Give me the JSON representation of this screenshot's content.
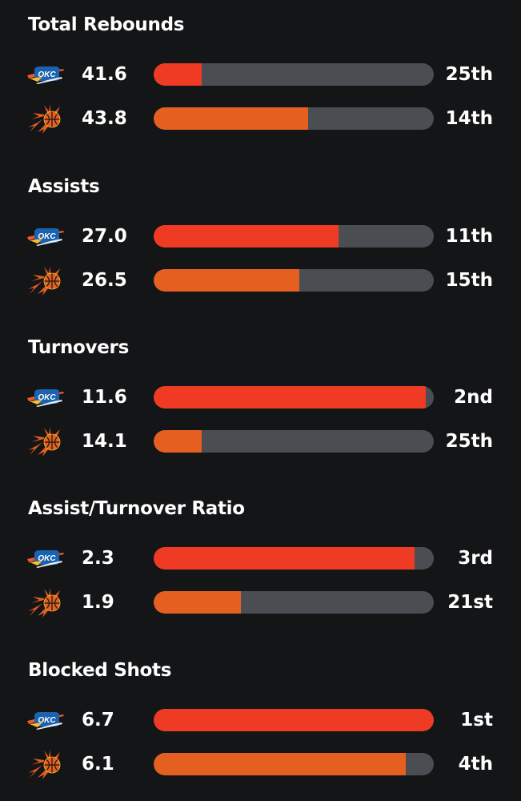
{
  "colors": {
    "background": "#141517",
    "track": "#4a4d52",
    "okc_bar": "#ef3b24",
    "phx_bar": "#e56020",
    "text": "#ffffff"
  },
  "teams": [
    {
      "key": "okc",
      "logo_icon": "okc-thunder-logo-icon"
    },
    {
      "key": "phx",
      "logo_icon": "phoenix-suns-logo-icon"
    }
  ],
  "sections": [
    {
      "title": "Total Rebounds",
      "rows": [
        {
          "team": "okc",
          "value": "41.6",
          "rank": "25th",
          "bar_fraction": 0.17
        },
        {
          "team": "phx",
          "value": "43.8",
          "rank": "14th",
          "bar_fraction": 0.55
        }
      ]
    },
    {
      "title": "Assists",
      "rows": [
        {
          "team": "okc",
          "value": "27.0",
          "rank": "11th",
          "bar_fraction": 0.66
        },
        {
          "team": "phx",
          "value": "26.5",
          "rank": "15th",
          "bar_fraction": 0.52
        }
      ]
    },
    {
      "title": "Turnovers",
      "rows": [
        {
          "team": "okc",
          "value": "11.6",
          "rank": "2nd",
          "bar_fraction": 0.97
        },
        {
          "team": "phx",
          "value": "14.1",
          "rank": "25th",
          "bar_fraction": 0.17
        }
      ]
    },
    {
      "title": "Assist/Turnover Ratio",
      "rows": [
        {
          "team": "okc",
          "value": "2.3",
          "rank": "3rd",
          "bar_fraction": 0.93
        },
        {
          "team": "phx",
          "value": "1.9",
          "rank": "21st",
          "bar_fraction": 0.31
        }
      ]
    },
    {
      "title": "Blocked Shots",
      "rows": [
        {
          "team": "okc",
          "value": "6.7",
          "rank": "1st",
          "bar_fraction": 1.0
        },
        {
          "team": "phx",
          "value": "6.1",
          "rank": "4th",
          "bar_fraction": 0.9
        }
      ]
    }
  ]
}
